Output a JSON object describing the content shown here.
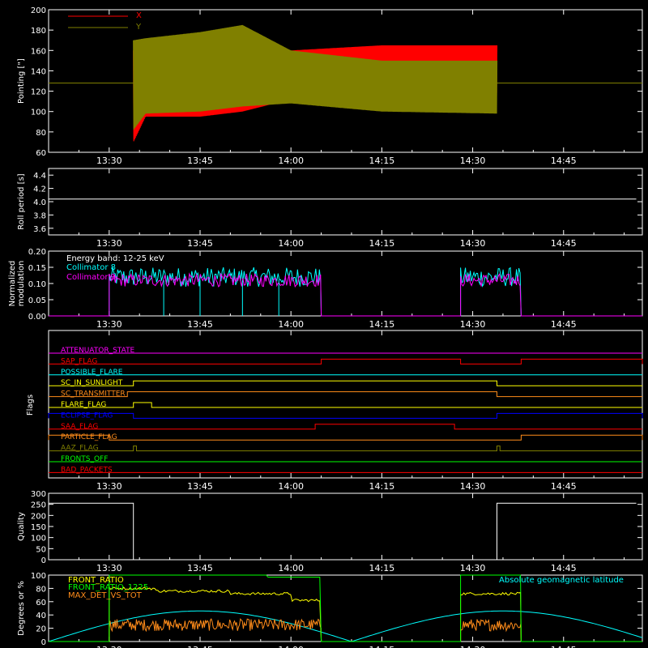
{
  "colors": {
    "background": "#000000",
    "axis": "#ffffff",
    "x_red": "#ff0000",
    "y_olive": "#808000",
    "cyan": "#00ffff",
    "magenta": "#ff00ff",
    "yellow": "#ffff00",
    "green": "#00ff00",
    "orange": "#ff8c1a",
    "blue": "#0000ff",
    "white": "#ffffff"
  },
  "time_ticks": [
    "13:30",
    "13:45",
    "14:00",
    "14:15",
    "14:30",
    "14:45"
  ],
  "chart_data": [
    {
      "id": "pointing",
      "type": "line",
      "ylabel": "Pointing [\"]",
      "ylim": [
        60,
        200
      ],
      "yticks": [
        60,
        80,
        100,
        120,
        140,
        160,
        180,
        200
      ],
      "legend": [
        {
          "name": "X",
          "color": "#ff0000"
        },
        {
          "name": "Y",
          "color": "#808000"
        }
      ],
      "series": [
        {
          "name": "X",
          "color": "#ff0000",
          "x": [
            "13:34",
            "13:36",
            "13:45",
            "13:52",
            "14:00",
            "14:15",
            "14:34"
          ],
          "ymax": [
            160,
            165,
            175,
            175,
            160,
            165,
            165
          ],
          "ymin": [
            70,
            95,
            95,
            100,
            112,
            118,
            118
          ]
        },
        {
          "name": "Y",
          "color": "#808000",
          "x": [
            "13:34",
            "13:36",
            "13:45",
            "13:52",
            "14:00",
            "14:15",
            "14:34"
          ],
          "ymax": [
            170,
            172,
            178,
            185,
            160,
            150,
            150
          ],
          "ymin": [
            82,
            98,
            100,
            105,
            108,
            100,
            98
          ],
          "baseline": 128
        }
      ]
    },
    {
      "id": "roll-period",
      "type": "line",
      "ylabel": "Roll period [s]",
      "ylim": [
        3.5,
        4.5
      ],
      "yticks": [
        "3.6",
        "3.8",
        "4.0",
        "4.2",
        "4.4"
      ],
      "series": [
        {
          "name": "",
          "color": "#ffffff",
          "x": [
            "13:20",
            "14:57"
          ],
          "y": [
            4.04,
            4.04
          ]
        }
      ]
    },
    {
      "id": "modulation",
      "type": "line",
      "ylabel": "Normalized modulation",
      "ylim": [
        0,
        0.2
      ],
      "yticks": [
        "0.00",
        "0.05",
        "0.10",
        "0.15",
        "0.20"
      ],
      "annotations": [
        "Energy band: 12-25 keV"
      ],
      "legend": [
        {
          "name": "Collimator 8",
          "color": "#00ffff"
        },
        {
          "name": "Collimator 9",
          "color": "#ff00ff"
        }
      ],
      "series": [
        {
          "name": "Collimator 8",
          "color": "#00ffff",
          "intervals": [
            [
              "13:30",
              "14:05"
            ],
            [
              "14:28",
              "14:38"
            ]
          ],
          "mean": 0.12
        },
        {
          "name": "Collimator 9",
          "color": "#ff00ff",
          "intervals": [
            [
              "13:30",
              "14:05"
            ],
            [
              "14:28",
              "14:38"
            ]
          ],
          "mean": 0.11
        }
      ]
    },
    {
      "id": "flags",
      "type": "line",
      "ylabel": "Flags",
      "flags": [
        {
          "name": "ATTENUATOR_STATE",
          "color": "#ff00ff",
          "on": []
        },
        {
          "name": "SAP_FLAG",
          "color": "#ff0000",
          "on": [
            [
              "14:05",
              "14:28"
            ],
            [
              "14:38",
              "14:58"
            ]
          ]
        },
        {
          "name": "POSSIBLE_FLARE",
          "color": "#00ffff",
          "on": []
        },
        {
          "name": "SC_IN_SUNLIGHT",
          "color": "#ffff00",
          "on": [
            [
              "13:34",
              "14:34"
            ]
          ]
        },
        {
          "name": "SC_TRANSMITTER",
          "color": "#ff8c1a",
          "on": [
            [
              "13:33",
              "14:34"
            ]
          ]
        },
        {
          "name": "FLARE_FLAG",
          "color": "#ffff00",
          "on": [
            [
              "13:34",
              "13:37"
            ]
          ]
        },
        {
          "name": "ECLIPSE_FLAG",
          "color": "#0000ff",
          "on": [
            [
              "13:20",
              "13:34"
            ],
            [
              "14:34",
              "14:58"
            ]
          ]
        },
        {
          "name": "SAA_FLAG",
          "color": "#ff0000",
          "on": [
            [
              "14:04",
              "14:27"
            ]
          ]
        },
        {
          "name": "PARTICLE_FLAG",
          "color": "#ff8c1a",
          "on": [
            [
              "13:20",
              "13:30"
            ],
            [
              "14:38",
              "14:58"
            ]
          ]
        },
        {
          "name": "AAZ_FLAG",
          "color": "#808000",
          "on": [
            [
              "13:34",
              "13:34.5"
            ],
            [
              "14:34",
              "14:34.5"
            ]
          ]
        },
        {
          "name": "FRONTS_OFF",
          "color": "#00ff00",
          "on": []
        },
        {
          "name": "BAD_PACKETS",
          "color": "#ff0000",
          "on": []
        }
      ]
    },
    {
      "id": "quality",
      "type": "line",
      "ylabel": "Quality",
      "ylim": [
        0,
        300
      ],
      "yticks": [
        0,
        50,
        100,
        150,
        200,
        250,
        300
      ],
      "series": [
        {
          "name": "",
          "color": "#ffffff",
          "x": [
            "13:20",
            "13:34",
            "13:34",
            "14:34",
            "14:34",
            "14:57"
          ],
          "y": [
            255,
            255,
            0,
            0,
            255,
            255
          ]
        }
      ]
    },
    {
      "id": "ratios",
      "type": "line",
      "ylabel": "Degrees or %",
      "ylim": [
        0,
        100
      ],
      "yticks": [
        0,
        20,
        40,
        60,
        80,
        100
      ],
      "legend": [
        {
          "name": "FRONT_RATIO",
          "color": "#ffff00"
        },
        {
          "name": "FRONT_RATIO_1225",
          "color": "#00ff00"
        },
        {
          "name": "MAX_DET_VS_TOT",
          "color": "#ff8c1a"
        },
        {
          "name": "Absolute geomagnetic latitude",
          "color": "#00ffff"
        }
      ],
      "series": [
        {
          "name": "FRONT_RATIO",
          "color": "#ffff00",
          "intervals": [
            [
              "13:30",
              "14:05"
            ],
            [
              "14:28",
              "14:38"
            ]
          ],
          "x": [
            "13:30",
            "13:45",
            "13:55",
            "14:05",
            "14:28",
            "14:38"
          ],
          "y": [
            80,
            76,
            72,
            62,
            72,
            72
          ]
        },
        {
          "name": "FRONT_RATIO_1225",
          "color": "#00ff00",
          "intervals": [
            [
              "13:30",
              "14:05"
            ],
            [
              "14:28",
              "14:38"
            ]
          ],
          "x": [
            "13:30",
            "13:55",
            "13:57",
            "14:05",
            "14:28",
            "14:38"
          ],
          "y": [
            100,
            100,
            97,
            97,
            100,
            100
          ]
        },
        {
          "name": "MAX_DET_VS_TOT",
          "color": "#ff8c1a",
          "intervals": [
            [
              "13:30",
              "14:05"
            ],
            [
              "14:28",
              "14:38"
            ]
          ],
          "mean": 25
        },
        {
          "name": "Absolute geomagnetic latitude",
          "color": "#00ffff",
          "x": [
            "13:20",
            "13:46",
            "14:10",
            "14:32",
            "14:57"
          ],
          "y": [
            0,
            46,
            0,
            46,
            0
          ]
        }
      ]
    }
  ]
}
